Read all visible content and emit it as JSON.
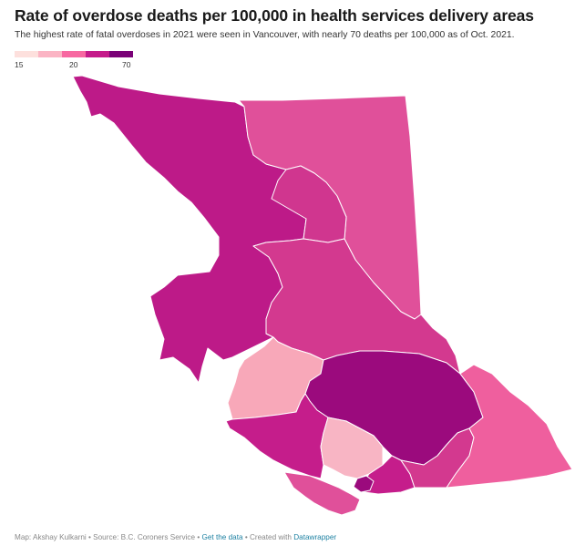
{
  "header": {
    "title": "Rate of overdose deaths per 100,000 in health services delivery areas",
    "subtitle": "The highest rate of fatal overdoses in 2021 were seen in Vancouver, with nearly 70 deaths per 100,000 as of Oct. 2021."
  },
  "legend": {
    "min_label": "15",
    "mid_label": "20",
    "max_label": "70",
    "colors": [
      "#fde0dd",
      "#fbb4c4",
      "#f768a1",
      "#c51b8a",
      "#7a0177"
    ]
  },
  "regions": [
    {
      "id": "northwest",
      "color": "#bd1a88"
    },
    {
      "id": "northeast",
      "color": "#e0509a"
    },
    {
      "id": "northern-interior-inner",
      "color": "#d0368f"
    },
    {
      "id": "northern-interior",
      "color": "#d3398f"
    },
    {
      "id": "north-vancouver-island",
      "color": "#f8a8b9"
    },
    {
      "id": "thompson-cariboo",
      "color": "#9b0a7d"
    },
    {
      "id": "central-vancouver-island",
      "color": "#c51d8b"
    },
    {
      "id": "south-vancouver-island",
      "color": "#e0509a"
    },
    {
      "id": "fraser",
      "color": "#f8b5c4"
    },
    {
      "id": "okanagan",
      "color": "#c51d8b"
    },
    {
      "id": "kootenay-boundary",
      "color": "#d3398f"
    },
    {
      "id": "east-kootenay",
      "color": "#ef5f9e"
    },
    {
      "id": "vancouver",
      "color": "#9b0a7d"
    }
  ],
  "footer": {
    "credit": "Map: Akshay Kulkarni • Source: B.C. Coroners Service • ",
    "data_link": "Get the data",
    "created": " • Created with ",
    "dw_link": "Datawrapper"
  }
}
